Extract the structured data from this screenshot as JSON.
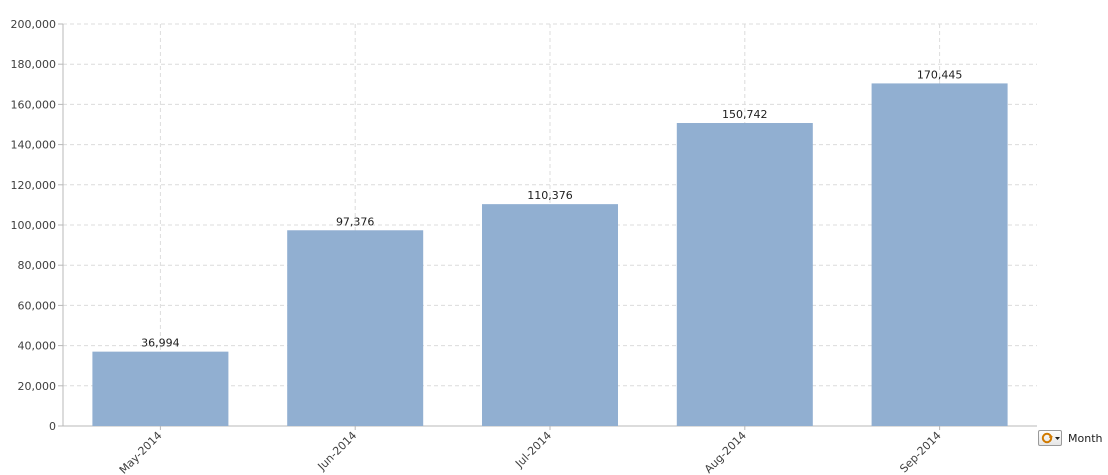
{
  "chart_data": {
    "type": "bar",
    "categories": [
      "May-2014",
      "Jun-2014",
      "Jul-2014",
      "Aug-2014",
      "Sep-2014"
    ],
    "values": [
      36994,
      97376,
      110376,
      150742,
      170445
    ],
    "data_labels": [
      "36,994",
      "97,376",
      "110,376",
      "150,742",
      "170,445"
    ],
    "yticks": [
      "0",
      "20,000",
      "40,000",
      "60,000",
      "80,000",
      "100,000",
      "120,000",
      "140,000",
      "160,000",
      "180,000",
      "200,000"
    ],
    "ylim": [
      0,
      200000
    ],
    "ytick_step": 20000,
    "grid": true,
    "bar_color": "#91afd1",
    "title": "",
    "xlabel": "",
    "ylabel": ""
  },
  "cycle_control": {
    "label": "Month",
    "icon": "cycle-group-icon"
  }
}
